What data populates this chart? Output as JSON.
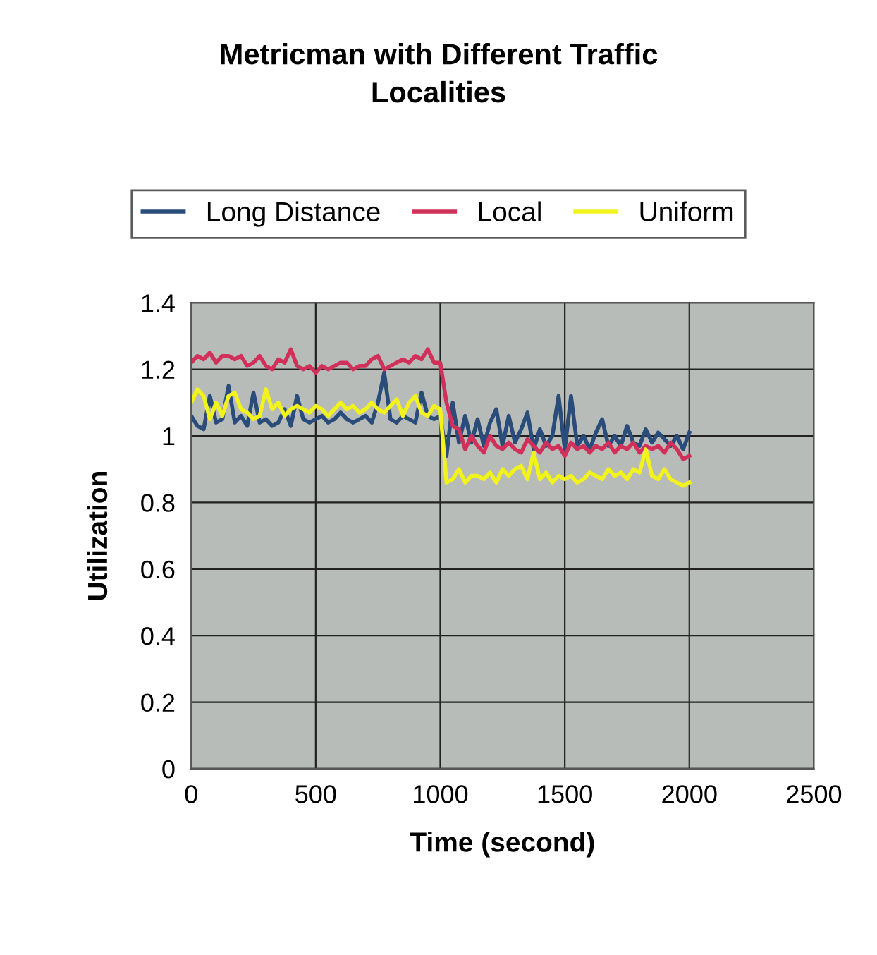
{
  "chart_data": {
    "type": "line",
    "title": "Metricman with Different Traffic\nLocalities",
    "xlabel": "Time (second)",
    "ylabel": "Utilization",
    "x": [
      0,
      25,
      50,
      75,
      100,
      125,
      150,
      175,
      200,
      225,
      250,
      275,
      300,
      325,
      350,
      375,
      400,
      425,
      450,
      475,
      500,
      525,
      550,
      575,
      600,
      625,
      650,
      675,
      700,
      725,
      750,
      775,
      800,
      825,
      850,
      875,
      900,
      925,
      950,
      975,
      1000,
      1025,
      1050,
      1075,
      1100,
      1125,
      1150,
      1175,
      1200,
      1225,
      1250,
      1275,
      1300,
      1325,
      1350,
      1375,
      1400,
      1425,
      1450,
      1475,
      1500,
      1525,
      1550,
      1575,
      1600,
      1625,
      1650,
      1675,
      1700,
      1725,
      1750,
      1775,
      1800,
      1825,
      1850,
      1875,
      1900,
      1925,
      1950,
      1975,
      2000
    ],
    "series": [
      {
        "name": "Long Distance",
        "color": "#2a4c7a",
        "values": [
          1.06,
          1.03,
          1.02,
          1.12,
          1.04,
          1.05,
          1.15,
          1.04,
          1.06,
          1.03,
          1.13,
          1.04,
          1.05,
          1.03,
          1.04,
          1.08,
          1.03,
          1.12,
          1.05,
          1.04,
          1.05,
          1.06,
          1.04,
          1.05,
          1.07,
          1.05,
          1.04,
          1.05,
          1.06,
          1.04,
          1.1,
          1.19,
          1.05,
          1.04,
          1.06,
          1.05,
          1.04,
          1.13,
          1.06,
          1.05,
          1.06,
          0.94,
          1.1,
          0.98,
          1.06,
          0.98,
          1.05,
          0.97,
          1.04,
          1.08,
          0.97,
          1.06,
          0.98,
          1.02,
          1.07,
          0.96,
          1.02,
          0.97,
          1.0,
          1.12,
          0.96,
          1.12,
          0.97,
          1.0,
          0.96,
          1.01,
          1.05,
          0.97,
          1.0,
          0.97,
          1.03,
          0.98,
          0.97,
          1.02,
          0.98,
          1.01,
          0.99,
          0.97,
          1.0,
          0.96,
          1.01
        ]
      },
      {
        "name": "Local",
        "color": "#d0305a",
        "values": [
          1.22,
          1.24,
          1.23,
          1.25,
          1.22,
          1.24,
          1.24,
          1.23,
          1.24,
          1.21,
          1.22,
          1.24,
          1.21,
          1.2,
          1.23,
          1.22,
          1.26,
          1.21,
          1.2,
          1.21,
          1.19,
          1.21,
          1.2,
          1.21,
          1.22,
          1.22,
          1.2,
          1.21,
          1.21,
          1.23,
          1.24,
          1.2,
          1.21,
          1.22,
          1.23,
          1.22,
          1.24,
          1.23,
          1.26,
          1.22,
          1.22,
          1.1,
          1.03,
          1.02,
          0.96,
          1.0,
          0.97,
          0.95,
          1.0,
          0.97,
          0.96,
          0.98,
          0.96,
          0.95,
          0.99,
          0.97,
          0.95,
          0.98,
          0.96,
          0.97,
          0.94,
          0.98,
          0.96,
          0.97,
          0.95,
          0.97,
          0.96,
          0.98,
          0.95,
          0.97,
          0.96,
          0.98,
          0.95,
          0.97,
          0.96,
          0.97,
          0.95,
          0.98,
          0.96,
          0.93,
          0.94
        ]
      },
      {
        "name": "Uniform",
        "color": "#f2f21c",
        "values": [
          1.1,
          1.14,
          1.12,
          1.05,
          1.1,
          1.06,
          1.12,
          1.13,
          1.08,
          1.07,
          1.05,
          1.06,
          1.14,
          1.08,
          1.1,
          1.06,
          1.08,
          1.09,
          1.08,
          1.07,
          1.09,
          1.08,
          1.06,
          1.08,
          1.1,
          1.08,
          1.09,
          1.07,
          1.08,
          1.1,
          1.08,
          1.07,
          1.09,
          1.11,
          1.06,
          1.1,
          1.12,
          1.07,
          1.06,
          1.09,
          1.08,
          0.86,
          0.87,
          0.9,
          0.86,
          0.88,
          0.88,
          0.87,
          0.89,
          0.86,
          0.9,
          0.88,
          0.9,
          0.91,
          0.87,
          0.95,
          0.87,
          0.89,
          0.86,
          0.88,
          0.87,
          0.88,
          0.86,
          0.87,
          0.89,
          0.88,
          0.87,
          0.9,
          0.88,
          0.89,
          0.87,
          0.9,
          0.89,
          0.96,
          0.88,
          0.87,
          0.9,
          0.87,
          0.86,
          0.85,
          0.86
        ]
      }
    ],
    "xlim": [
      0,
      2500
    ],
    "xticks": [
      0,
      500,
      1000,
      1500,
      2000,
      2500
    ],
    "ylim": [
      0,
      1.4
    ],
    "yticks": [
      0,
      0.2,
      0.4,
      0.6,
      0.8,
      1,
      1.2,
      1.4
    ],
    "grid": true,
    "legend": "top",
    "marker": "none",
    "line_style": "solid"
  }
}
